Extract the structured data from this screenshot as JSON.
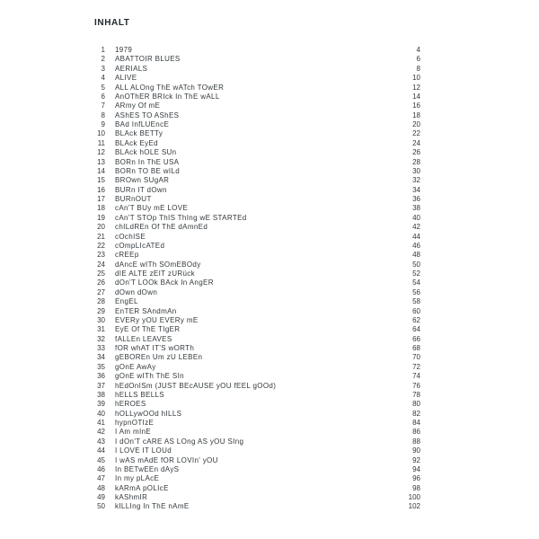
{
  "page": {
    "title": "INHALT",
    "text_color": "#32383c",
    "background_color": "#ffffff"
  },
  "toc": {
    "entries": [
      {
        "num": "1",
        "title": "1979",
        "page": "4"
      },
      {
        "num": "2",
        "title": "ABATTOIR BLUES",
        "page": "6"
      },
      {
        "num": "3",
        "title": "AERIALS",
        "page": "8"
      },
      {
        "num": "4",
        "title": "ALIVE",
        "page": "10"
      },
      {
        "num": "5",
        "title": "ALL ALOng ThE wATch TOwER",
        "page": "12"
      },
      {
        "num": "6",
        "title": "AnOThER BRIck In ThE wALL",
        "page": "14"
      },
      {
        "num": "7",
        "title": "ARmy Of mE",
        "page": "16"
      },
      {
        "num": "8",
        "title": "AShES TO AShES",
        "page": "18"
      },
      {
        "num": "9",
        "title": "BAd InfLUEncE",
        "page": "20"
      },
      {
        "num": "10",
        "title": "BLAck BETTy",
        "page": "22"
      },
      {
        "num": "11",
        "title": "BLAck EyEd",
        "page": "24"
      },
      {
        "num": "12",
        "title": "BLAck hOLE SUn",
        "page": "26"
      },
      {
        "num": "13",
        "title": "BORn In ThE USA",
        "page": "28"
      },
      {
        "num": "14",
        "title": "BORn TO BE wILd",
        "page": "30"
      },
      {
        "num": "15",
        "title": "BROwn SUgAR",
        "page": "32"
      },
      {
        "num": "16",
        "title": "BURn IT dOwn",
        "page": "34"
      },
      {
        "num": "17",
        "title": "BURnOUT",
        "page": "36"
      },
      {
        "num": "18",
        "title": "cAn'T BUy mE LOVE",
        "page": "38"
      },
      {
        "num": "19",
        "title": "cAn'T STOp ThIS ThIng wE STARTEd",
        "page": "40"
      },
      {
        "num": "20",
        "title": "chILdREn Of ThE dAmnEd",
        "page": "42"
      },
      {
        "num": "21",
        "title": "cOchISE",
        "page": "44"
      },
      {
        "num": "22",
        "title": "cOmpLIcATEd",
        "page": "46"
      },
      {
        "num": "23",
        "title": "cREEp",
        "page": "48"
      },
      {
        "num": "24",
        "title": "dAncE wITh SOmEBOdy",
        "page": "50"
      },
      {
        "num": "25",
        "title": "dIE ALTE zEIT zURück",
        "page": "52"
      },
      {
        "num": "26",
        "title": "dOn'T LOOk BAck In AngER",
        "page": "54"
      },
      {
        "num": "27",
        "title": "dOwn dOwn",
        "page": "56"
      },
      {
        "num": "28",
        "title": "EngEL",
        "page": "58"
      },
      {
        "num": "29",
        "title": "EnTER SAndmAn",
        "page": "60"
      },
      {
        "num": "30",
        "title": "EVERy yOU EVERy mE",
        "page": "62"
      },
      {
        "num": "31",
        "title": "EyE Of ThE TIgER",
        "page": "64"
      },
      {
        "num": "32",
        "title": "fALLEn LEAVES",
        "page": "66"
      },
      {
        "num": "33",
        "title": "fOR whAT IT'S wORTh",
        "page": "68"
      },
      {
        "num": "34",
        "title": "gEBOREn Um zU LEBEn",
        "page": "70"
      },
      {
        "num": "35",
        "title": "gOnE AwAy",
        "page": "72"
      },
      {
        "num": "36",
        "title": "gOnE wITh ThE SIn",
        "page": "74"
      },
      {
        "num": "37",
        "title": "hEdOnISm (JUST BEcAUSE yOU fEEL gOOd)",
        "page": "76"
      },
      {
        "num": "38",
        "title": "hELLS BELLS",
        "page": "78"
      },
      {
        "num": "39",
        "title": "hEROES",
        "page": "80"
      },
      {
        "num": "40",
        "title": "hOLLywOOd hILLS",
        "page": "82"
      },
      {
        "num": "41",
        "title": "hypnOTIzE",
        "page": "84"
      },
      {
        "num": "42",
        "title": "I Am mInE",
        "page": "86"
      },
      {
        "num": "43",
        "title": "I dOn'T cARE AS LOng AS yOU SIng",
        "page": "88"
      },
      {
        "num": "44",
        "title": "I LOVE IT LOUd",
        "page": "90"
      },
      {
        "num": "45",
        "title": "I wAS mAdE fOR LOVIn' yOU",
        "page": "92"
      },
      {
        "num": "46",
        "title": "In BETwEEn dAyS",
        "page": "94"
      },
      {
        "num": "47",
        "title": "In my pLAcE",
        "page": "96"
      },
      {
        "num": "48",
        "title": "kARmA pOLIcE",
        "page": "98"
      },
      {
        "num": "49",
        "title": "kAShmIR",
        "page": "100"
      },
      {
        "num": "50",
        "title": "kILLIng In ThE nAmE",
        "page": "102"
      }
    ]
  }
}
